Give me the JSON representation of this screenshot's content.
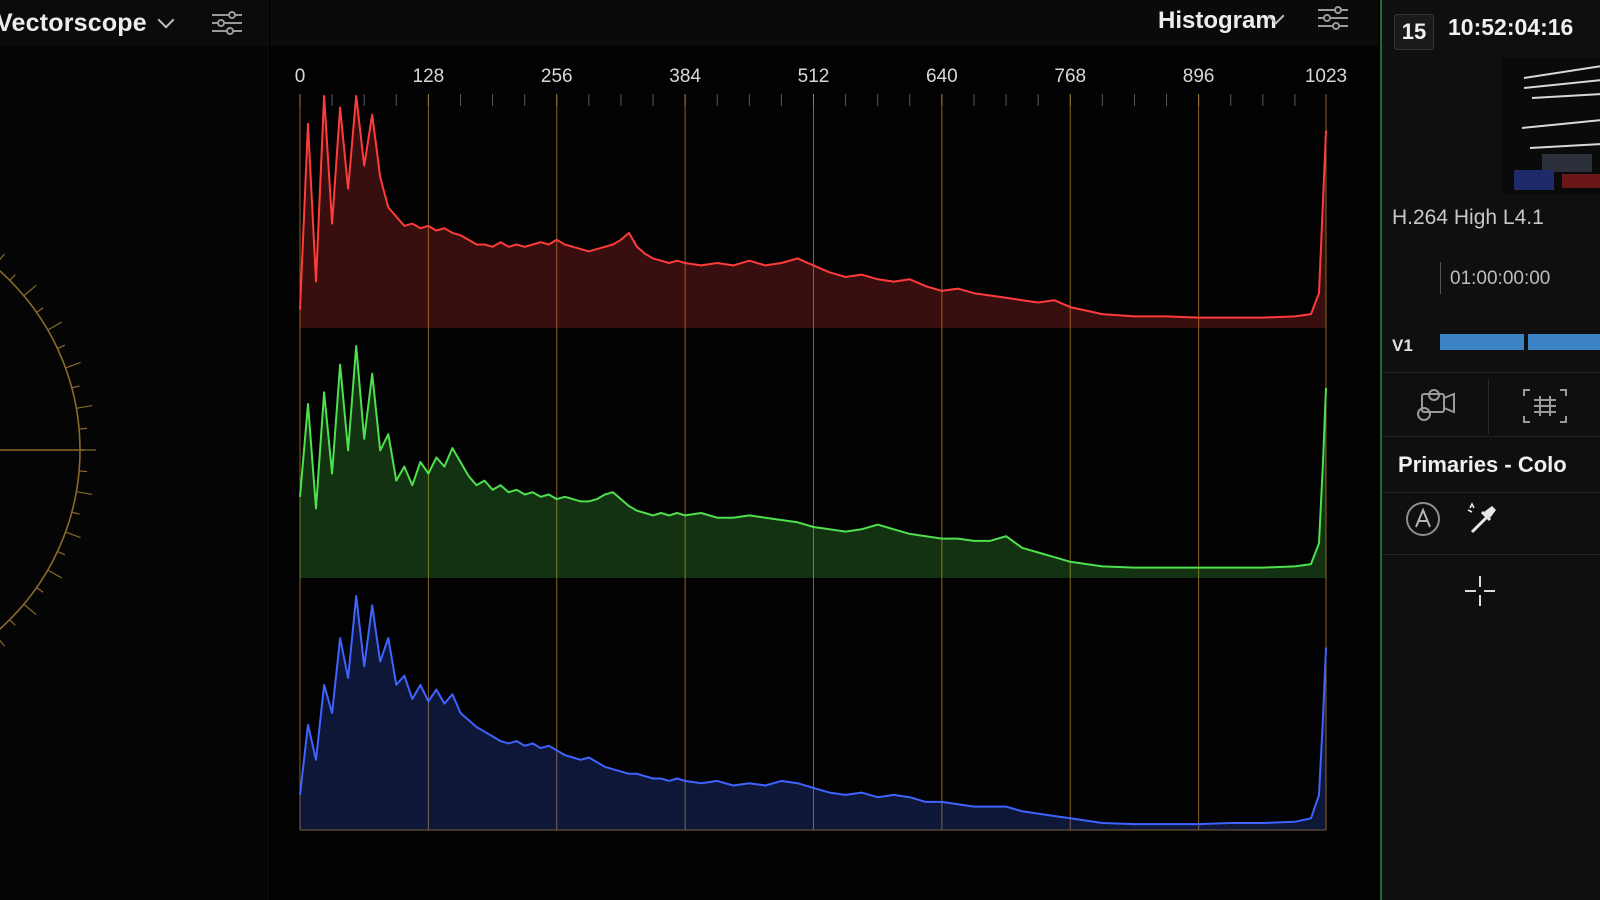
{
  "left_panel": {
    "title": "Vectorscope",
    "icons": {
      "dropdown": "chevron-down-icon",
      "settings": "sliders-icon"
    }
  },
  "histogram_panel": {
    "title": "Histogram",
    "icons": {
      "dropdown": "chevron-down-icon",
      "settings": "sliders-icon"
    }
  },
  "right_panel": {
    "clip_number": "15",
    "timecode": "10:52:04:16",
    "codec": "H.264 High L4.1",
    "timeline_timecode": "01:00:00:00",
    "track_label": "V1",
    "section_title": "Primaries - Colo",
    "icons": [
      "camera-3d-icon",
      "grid-frame-icon",
      "auto-a-icon",
      "eyedropper-icon",
      "crosshair-icon"
    ]
  },
  "colors": {
    "red": "#ff3b3b",
    "green": "#4ee04e",
    "blue": "#3f63ff",
    "grid": "#b8862e",
    "accent_green": "#1f6a32"
  },
  "chart_data": {
    "type": "area",
    "x_ticks": [
      "0",
      "128",
      "256",
      "384",
      "512",
      "640",
      "768",
      "896",
      "1023"
    ],
    "xlim": [
      0,
      1023
    ],
    "grid": true,
    "series": [
      {
        "color": "#ff3b3b",
        "x": [
          0,
          8,
          16,
          24,
          32,
          40,
          48,
          56,
          64,
          72,
          80,
          88,
          96,
          104,
          112,
          120,
          128,
          136,
          144,
          152,
          160,
          168,
          176,
          184,
          192,
          200,
          208,
          216,
          224,
          232,
          240,
          248,
          256,
          264,
          272,
          280,
          288,
          296,
          304,
          312,
          320,
          328,
          336,
          344,
          352,
          360,
          368,
          376,
          384,
          400,
          416,
          432,
          448,
          464,
          480,
          496,
          512,
          528,
          544,
          560,
          576,
          592,
          608,
          624,
          640,
          656,
          672,
          688,
          704,
          720,
          736,
          752,
          768,
          800,
          832,
          864,
          896,
          928,
          960,
          992,
          1008,
          1016,
          1020,
          1023
        ],
        "values": [
          0.08,
          0.88,
          0.2,
          1.0,
          0.45,
          0.95,
          0.6,
          1.0,
          0.7,
          0.92,
          0.65,
          0.52,
          0.48,
          0.44,
          0.45,
          0.43,
          0.44,
          0.42,
          0.43,
          0.41,
          0.4,
          0.38,
          0.36,
          0.36,
          0.35,
          0.37,
          0.35,
          0.36,
          0.35,
          0.36,
          0.37,
          0.36,
          0.38,
          0.36,
          0.35,
          0.34,
          0.33,
          0.34,
          0.35,
          0.36,
          0.38,
          0.41,
          0.35,
          0.32,
          0.3,
          0.29,
          0.28,
          0.29,
          0.28,
          0.27,
          0.28,
          0.27,
          0.29,
          0.27,
          0.28,
          0.3,
          0.27,
          0.24,
          0.22,
          0.23,
          0.21,
          0.2,
          0.21,
          0.18,
          0.16,
          0.17,
          0.15,
          0.14,
          0.13,
          0.12,
          0.11,
          0.12,
          0.09,
          0.06,
          0.05,
          0.05,
          0.045,
          0.045,
          0.045,
          0.05,
          0.06,
          0.15,
          0.55,
          0.85
        ]
      },
      {
        "color": "#4ee04e",
        "x": [
          0,
          8,
          16,
          24,
          32,
          40,
          48,
          56,
          64,
          72,
          80,
          88,
          96,
          104,
          112,
          120,
          128,
          136,
          144,
          152,
          160,
          168,
          176,
          184,
          192,
          200,
          208,
          216,
          224,
          232,
          240,
          248,
          256,
          264,
          272,
          280,
          288,
          296,
          304,
          312,
          320,
          328,
          336,
          344,
          352,
          360,
          368,
          376,
          384,
          400,
          416,
          432,
          448,
          464,
          480,
          496,
          512,
          528,
          544,
          560,
          576,
          592,
          608,
          624,
          640,
          656,
          672,
          688,
          704,
          720,
          736,
          752,
          768,
          800,
          832,
          864,
          896,
          928,
          960,
          992,
          1008,
          1016,
          1020,
          1023
        ],
        "values": [
          0.35,
          0.75,
          0.3,
          0.8,
          0.45,
          0.92,
          0.55,
          1.0,
          0.6,
          0.88,
          0.55,
          0.62,
          0.42,
          0.48,
          0.4,
          0.5,
          0.45,
          0.52,
          0.48,
          0.56,
          0.5,
          0.44,
          0.4,
          0.42,
          0.38,
          0.4,
          0.37,
          0.38,
          0.36,
          0.37,
          0.35,
          0.36,
          0.34,
          0.35,
          0.34,
          0.33,
          0.33,
          0.34,
          0.36,
          0.37,
          0.34,
          0.31,
          0.29,
          0.28,
          0.27,
          0.28,
          0.27,
          0.28,
          0.27,
          0.28,
          0.26,
          0.26,
          0.27,
          0.26,
          0.25,
          0.24,
          0.22,
          0.21,
          0.2,
          0.21,
          0.23,
          0.21,
          0.19,
          0.18,
          0.17,
          0.17,
          0.16,
          0.16,
          0.18,
          0.13,
          0.11,
          0.09,
          0.07,
          0.05,
          0.045,
          0.045,
          0.045,
          0.045,
          0.045,
          0.05,
          0.06,
          0.15,
          0.5,
          0.82
        ]
      },
      {
        "color": "#3f63ff",
        "x": [
          0,
          8,
          16,
          24,
          32,
          40,
          48,
          56,
          64,
          72,
          80,
          88,
          96,
          104,
          112,
          120,
          128,
          136,
          144,
          152,
          160,
          168,
          176,
          184,
          192,
          200,
          208,
          216,
          224,
          232,
          240,
          248,
          256,
          264,
          272,
          280,
          288,
          296,
          304,
          312,
          320,
          328,
          336,
          344,
          352,
          360,
          368,
          376,
          384,
          400,
          416,
          432,
          448,
          464,
          480,
          496,
          512,
          528,
          544,
          560,
          576,
          592,
          608,
          624,
          640,
          656,
          672,
          688,
          704,
          720,
          736,
          752,
          768,
          800,
          832,
          864,
          896,
          928,
          960,
          992,
          1008,
          1016,
          1020,
          1023
        ],
        "values": [
          0.15,
          0.45,
          0.3,
          0.62,
          0.5,
          0.82,
          0.65,
          1.0,
          0.7,
          0.96,
          0.72,
          0.82,
          0.62,
          0.66,
          0.56,
          0.62,
          0.55,
          0.6,
          0.54,
          0.58,
          0.5,
          0.47,
          0.44,
          0.42,
          0.4,
          0.38,
          0.37,
          0.38,
          0.36,
          0.37,
          0.35,
          0.36,
          0.34,
          0.32,
          0.31,
          0.3,
          0.31,
          0.29,
          0.27,
          0.26,
          0.25,
          0.24,
          0.24,
          0.23,
          0.22,
          0.22,
          0.21,
          0.22,
          0.21,
          0.2,
          0.21,
          0.19,
          0.2,
          0.19,
          0.21,
          0.2,
          0.18,
          0.16,
          0.15,
          0.16,
          0.14,
          0.15,
          0.14,
          0.12,
          0.12,
          0.11,
          0.1,
          0.1,
          0.1,
          0.08,
          0.07,
          0.06,
          0.05,
          0.03,
          0.025,
          0.025,
          0.025,
          0.03,
          0.03,
          0.035,
          0.05,
          0.15,
          0.48,
          0.78
        ]
      }
    ]
  }
}
